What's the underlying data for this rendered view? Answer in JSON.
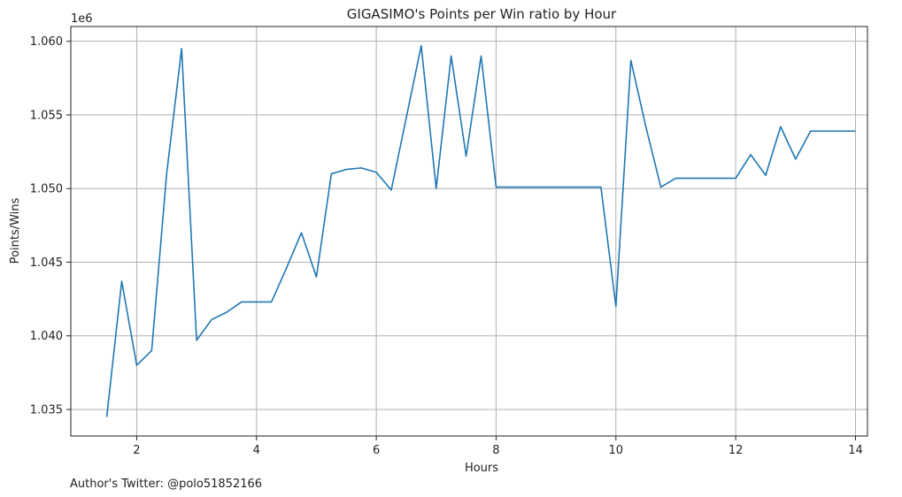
{
  "chart_data": {
    "type": "line",
    "title": "GIGASIMO's Points per Win ratio by Hour",
    "xlabel": "Hours",
    "ylabel": "Points/Wins",
    "y_offset_label": "1e6",
    "footer": "Author's Twitter: @polo51852166",
    "xlim": [
      0.9,
      14.2
    ],
    "ylim": [
      1.0332,
      1.061
    ],
    "x_ticks": [
      2,
      4,
      6,
      8,
      10,
      12,
      14
    ],
    "y_ticks": [
      1.035,
      1.04,
      1.045,
      1.05,
      1.055,
      1.06
    ],
    "y_tick_labels": [
      "1.035",
      "1.040",
      "1.045",
      "1.050",
      "1.055",
      "1.060"
    ],
    "grid": true,
    "series": [
      {
        "color": "#1f77b4",
        "x": [
          1.5,
          1.75,
          2.0,
          2.25,
          2.5,
          2.75,
          3.0,
          3.25,
          3.5,
          3.75,
          4.0,
          4.25,
          4.5,
          4.75,
          5.0,
          5.25,
          5.5,
          5.75,
          6.0,
          6.25,
          6.5,
          6.75,
          7.0,
          7.25,
          7.5,
          7.75,
          8.0,
          8.25,
          8.5,
          8.75,
          9.0,
          9.25,
          9.5,
          9.75,
          10.0,
          10.25,
          10.5,
          10.75,
          11.0,
          11.25,
          11.5,
          11.75,
          12.0,
          12.25,
          12.5,
          12.75,
          13.0,
          13.25,
          13.5,
          13.75,
          14.0
        ],
        "y": [
          1.0345,
          1.0437,
          1.038,
          1.039,
          1.051,
          1.0595,
          1.0397,
          1.0411,
          1.0416,
          1.0423,
          1.0423,
          1.0423,
          1.0446,
          1.047,
          1.044,
          1.051,
          1.0513,
          1.0514,
          1.0511,
          1.0499,
          1.0548,
          1.0597,
          1.05,
          1.059,
          1.0522,
          1.059,
          1.0501,
          1.0501,
          1.0501,
          1.0501,
          1.0501,
          1.0501,
          1.0501,
          1.0501,
          1.042,
          1.0587,
          1.0542,
          1.0501,
          1.0507,
          1.0507,
          1.0507,
          1.0507,
          1.0507,
          1.0523,
          1.0509,
          1.0542,
          1.052,
          1.0539,
          1.0539,
          1.0539,
          1.0539
        ]
      }
    ]
  }
}
